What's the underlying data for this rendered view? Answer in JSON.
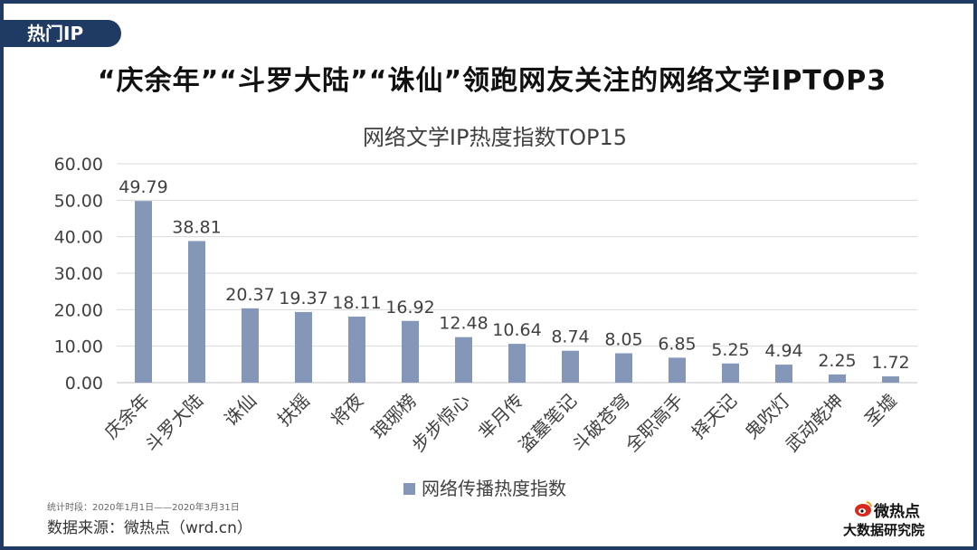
{
  "header": {
    "tag": "热门IP",
    "headline": "“庆余年”“斗罗大陆”“诛仙”领跑网友关注的网络文学IPTOP3"
  },
  "footer": {
    "period": "统计时段：2020年1月1日——2020年3月31日",
    "source": "数据来源：微热点（wrd.cn）"
  },
  "logo": {
    "name": "微热点",
    "subtitle": "大数据研究院"
  },
  "colors": {
    "frame": "#1f3a63",
    "bar": "#8497b9",
    "grid": "#d9d9d9",
    "text": "#404040"
  },
  "chart_data": {
    "type": "bar",
    "title": "网络文学IP热度指数TOP15",
    "categories": [
      "庆余年",
      "斗罗大陆",
      "诛仙",
      "扶摇",
      "将夜",
      "琅琊榜",
      "步步惊心",
      "芈月传",
      "盗墓笔记",
      "斗破苍穹",
      "全职高手",
      "择天记",
      "鬼吹灯",
      "武动乾坤",
      "圣墟"
    ],
    "series": [
      {
        "name": "网络传播热度指数",
        "values": [
          49.79,
          38.81,
          20.37,
          19.37,
          18.11,
          16.92,
          12.48,
          10.64,
          8.74,
          8.05,
          6.85,
          5.25,
          4.94,
          2.25,
          1.72
        ]
      }
    ],
    "value_labels": [
      "49.79",
      "38.81",
      "20.37",
      "19.37",
      "18.11",
      "16.92",
      "12.48",
      "10.64",
      "8.74",
      "8.05",
      "6.85",
      "5.25",
      "4.94",
      "2.25",
      "1.72"
    ],
    "ylim": [
      0,
      60
    ],
    "yticks": [
      "0.00",
      "10.00",
      "20.00",
      "30.00",
      "40.00",
      "50.00",
      "60.00"
    ],
    "grid": true,
    "legend": "bottom"
  }
}
